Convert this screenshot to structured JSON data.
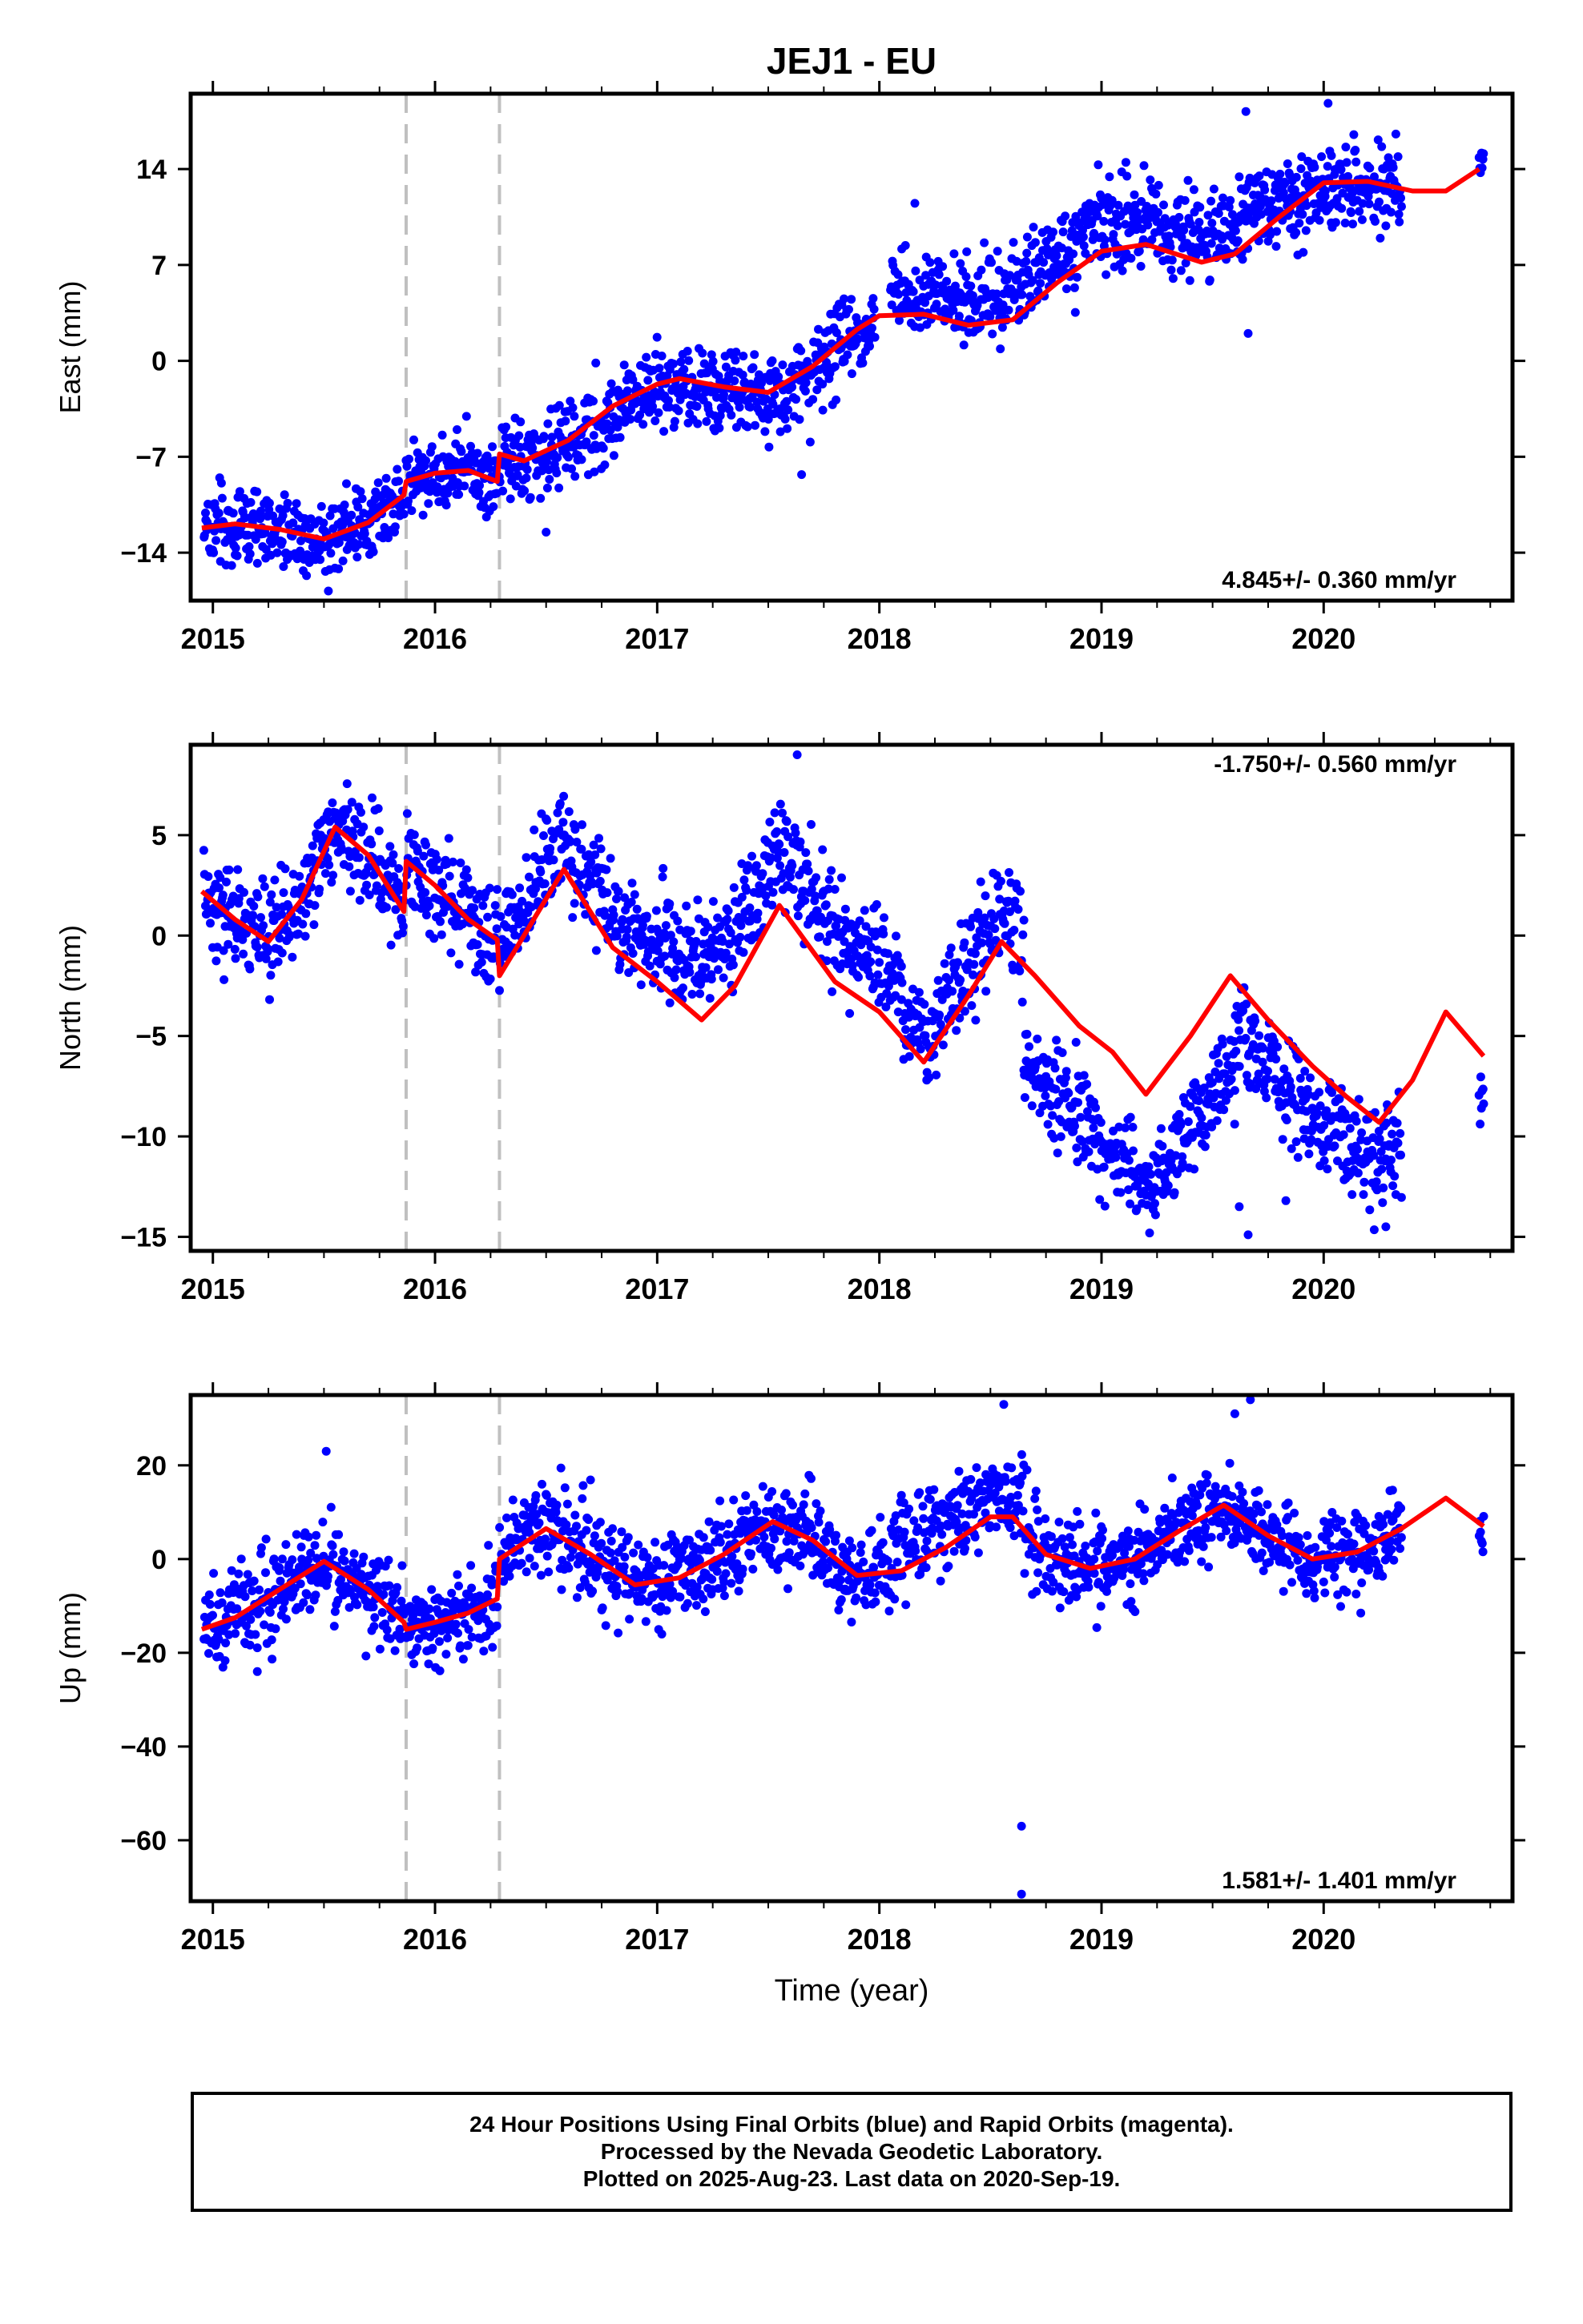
{
  "title": "JEJ1 - EU",
  "colors": {
    "data": "#0000ff",
    "model": "#ff0000",
    "offset_line": "#c0c0c0",
    "frame": "#000000"
  },
  "chart_data": [
    {
      "type": "scatter",
      "component": "east",
      "ylabel": "East (mm)",
      "rate_label": "4.845+/- 0.360 mm/yr",
      "rate_position": "bottom-right",
      "xlim": [
        2014.9,
        2020.85
      ],
      "ylim": [
        -17.5,
        19.5
      ],
      "yticks": [
        -14,
        -7,
        0,
        7,
        14
      ],
      "xticks": [
        2015,
        2016,
        2017,
        2018,
        2019,
        2020
      ],
      "offset_lines": [
        2015.87,
        2016.29
      ],
      "model": {
        "t": [
          2014.95,
          2015.1,
          2015.3,
          2015.5,
          2015.7,
          2015.86,
          2015.87,
          2016.0,
          2016.15,
          2016.28,
          2016.29,
          2016.4,
          2016.6,
          2016.8,
          2017.0,
          2017.1,
          2017.3,
          2017.5,
          2017.7,
          2017.9,
          2018.0,
          2018.2,
          2018.4,
          2018.6,
          2018.8,
          2019.0,
          2019.2,
          2019.45,
          2019.6,
          2019.8,
          2020.0,
          2020.2,
          2020.4,
          2020.55,
          2020.7
        ],
        "y": [
          -12.2,
          -11.9,
          -12.3,
          -13.0,
          -11.8,
          -9.8,
          -8.8,
          -8.2,
          -8.0,
          -8.8,
          -6.8,
          -7.3,
          -5.8,
          -3.3,
          -1.7,
          -1.3,
          -1.9,
          -2.3,
          -0.4,
          2.3,
          3.3,
          3.4,
          2.6,
          3.0,
          5.7,
          8.0,
          8.5,
          7.2,
          7.8,
          10.5,
          13.0,
          13.1,
          12.4,
          12.4,
          14.0
        ]
      },
      "series": {
        "name": "",
        "segments": [
          {
            "t0": 2014.96,
            "t1": 2015.86,
            "model_offset": 0,
            "noise": 1.4
          },
          {
            "t0": 2015.87,
            "t1": 2016.28,
            "model_offset": 0,
            "noise": 1.3
          },
          {
            "t0": 2016.29,
            "t1": 2017.98,
            "model_offset": -0.3,
            "noise": 1.5
          },
          {
            "t0": 2018.05,
            "t1": 2019.85,
            "model_offset": 1.8,
            "noise": 1.6
          },
          {
            "t0": 2019.85,
            "t1": 2020.35,
            "model_offset": 0,
            "noise": 1.5
          },
          {
            "t0": 2020.7,
            "t1": 2020.72,
            "model_offset": 0,
            "noise": 0.7
          }
        ],
        "outliers": [
          [
            2019.65,
            18.2
          ],
          [
            2019.66,
            2.0
          ],
          [
            2020.02,
            18.8
          ],
          [
            2018.16,
            11.5
          ],
          [
            2017.65,
            -8.3
          ],
          [
            2015.52,
            -16.8
          ],
          [
            2016.5,
            -12.5
          ]
        ]
      }
    },
    {
      "type": "scatter",
      "component": "north",
      "ylabel": "North (mm)",
      "rate_label": "-1.750+/- 0.560 mm/yr",
      "rate_position": "top-right",
      "xlim": [
        2014.9,
        2020.85
      ],
      "ylim": [
        -15.7,
        9.5
      ],
      "yticks": [
        -15,
        -10,
        -5,
        0,
        5
      ],
      "xticks": [
        2015,
        2016,
        2017,
        2018,
        2019,
        2020
      ],
      "offset_lines": [
        2015.87,
        2016.29
      ],
      "model": {
        "t": [
          2014.95,
          2015.1,
          2015.25,
          2015.4,
          2015.55,
          2015.7,
          2015.86,
          2015.87,
          2016.0,
          2016.15,
          2016.28,
          2016.29,
          2016.4,
          2016.58,
          2016.8,
          2017.0,
          2017.2,
          2017.35,
          2017.55,
          2017.8,
          2018.0,
          2018.2,
          2018.4,
          2018.55,
          2018.7,
          2018.9,
          2019.05,
          2019.2,
          2019.4,
          2019.58,
          2019.75,
          2019.95,
          2020.1,
          2020.25,
          2020.4,
          2020.55,
          2020.72
        ],
        "y": [
          2.2,
          0.8,
          -0.3,
          1.8,
          5.4,
          4.0,
          1.2,
          3.7,
          2.5,
          0.8,
          -0.2,
          -2.0,
          0.0,
          3.3,
          -0.6,
          -2.3,
          -4.2,
          -2.5,
          1.5,
          -2.3,
          -3.8,
          -6.3,
          -3.0,
          -0.3,
          -2.0,
          -4.5,
          -5.8,
          -7.9,
          -5.0,
          -2.0,
          -4.2,
          -6.5,
          -8.0,
          -9.3,
          -7.2,
          -3.8,
          -6.0
        ]
      },
      "series": {
        "name": "",
        "segments": [
          {
            "t0": 2014.96,
            "t1": 2015.86,
            "model_offset": 0,
            "noise": 1.3
          },
          {
            "t0": 2015.87,
            "t1": 2016.28,
            "model_offset": 0,
            "noise": 1.2
          },
          {
            "t0": 2016.29,
            "t1": 2017.0,
            "model_offset": 1.5,
            "noise": 1.2
          },
          {
            "t0": 2017.0,
            "t1": 2018.1,
            "model_offset": 2.8,
            "noise": 1.3
          },
          {
            "t0": 2018.1,
            "t1": 2018.65,
            "model_offset": 1.2,
            "noise": 1.2
          },
          {
            "t0": 2018.65,
            "t1": 2019.6,
            "model_offset": -4.8,
            "noise": 1.2
          },
          {
            "t0": 2019.6,
            "t1": 2020.35,
            "model_offset": -2.2,
            "noise": 1.3
          },
          {
            "t0": 2020.7,
            "t1": 2020.72,
            "model_offset": -2.0,
            "noise": 0.7
          }
        ],
        "outliers": [
          [
            2017.63,
            9.0
          ],
          [
            2019.66,
            -14.9
          ],
          [
            2019.62,
            -13.5
          ],
          [
            2019.83,
            -13.2
          ],
          [
            2020.28,
            -14.5
          ],
          [
            2015.05,
            -2.2
          ]
        ]
      }
    },
    {
      "type": "scatter",
      "component": "up",
      "ylabel": "Up (mm)",
      "xlabel": "Time (year)",
      "rate_label": "1.581+/- 1.401 mm/yr",
      "rate_position": "bottom-right",
      "xlim": [
        2014.9,
        2020.85
      ],
      "ylim": [
        -73,
        35
      ],
      "yticks": [
        -60,
        -40,
        -20,
        0,
        20
      ],
      "xticks": [
        2015,
        2016,
        2017,
        2018,
        2019,
        2020
      ],
      "offset_lines": [
        2015.87,
        2016.29
      ],
      "model": {
        "t": [
          2014.95,
          2015.1,
          2015.3,
          2015.5,
          2015.7,
          2015.86,
          2015.87,
          2016.0,
          2016.15,
          2016.28,
          2016.29,
          2016.5,
          2016.7,
          2016.9,
          2017.1,
          2017.3,
          2017.52,
          2017.7,
          2017.9,
          2018.1,
          2018.3,
          2018.5,
          2018.6,
          2018.75,
          2018.95,
          2019.15,
          2019.35,
          2019.55,
          2019.75,
          2019.95,
          2020.15,
          2020.35,
          2020.55,
          2020.72
        ],
        "y": [
          -15.0,
          -12.5,
          -6.5,
          -0.5,
          -6.5,
          -13.5,
          -15.0,
          -13.5,
          -11.5,
          -8.5,
          0.0,
          6.5,
          1.0,
          -5.5,
          -4.0,
          1.0,
          8.0,
          4.0,
          -3.5,
          -2.5,
          2.5,
          9.0,
          9.0,
          1.0,
          -2.0,
          0.0,
          6.0,
          11.5,
          5.0,
          0.0,
          1.5,
          6.5,
          13.0,
          7.0
        ]
      },
      "series": {
        "name": "",
        "segments": [
          {
            "t0": 2014.96,
            "t1": 2015.86,
            "model_offset": 0,
            "noise": 5.0
          },
          {
            "t0": 2015.87,
            "t1": 2016.28,
            "model_offset": 0,
            "noise": 4.5
          },
          {
            "t0": 2016.29,
            "t1": 2018.05,
            "model_offset": 0,
            "noise": 5.0
          },
          {
            "t0": 2018.05,
            "t1": 2018.65,
            "model_offset": 5.0,
            "noise": 5.0
          },
          {
            "t0": 2018.65,
            "t1": 2019.85,
            "model_offset": 0,
            "noise": 4.5
          },
          {
            "t0": 2019.85,
            "t1": 2020.35,
            "model_offset": 0,
            "noise": 4.5
          },
          {
            "t0": 2020.7,
            "t1": 2020.72,
            "model_offset": -2.0,
            "noise": 3.0
          }
        ],
        "outliers": [
          [
            2018.64,
            -57.0
          ],
          [
            2018.64,
            -71.5
          ],
          [
            2019.67,
            34.0
          ],
          [
            2019.6,
            31.0
          ],
          [
            2018.56,
            33.0
          ],
          [
            2015.51,
            23.0
          ],
          [
            2015.2,
            -24.0
          ]
        ]
      }
    }
  ],
  "footer": {
    "line1": "24 Hour Positions Using Final Orbits (blue) and Rapid Orbits (magenta).",
    "line2": "Processed by the Nevada Geodetic Laboratory.",
    "line3": "Plotted on 2025-Aug-23. Last data on 2020-Sep-19."
  }
}
